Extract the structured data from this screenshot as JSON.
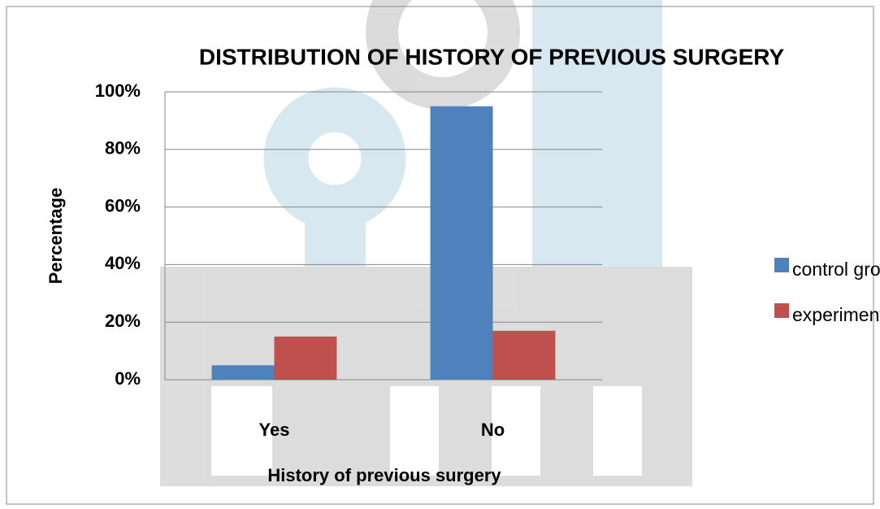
{
  "chart_data": {
    "type": "bar",
    "title": "DISTRIBUTION OF HISTORY OF PREVIOUS SURGERY",
    "x_label": "History of previous surgery",
    "y_label": "Percentage",
    "categories": [
      "Yes",
      "No"
    ],
    "series": [
      {
        "name": "control group",
        "color": "#4f81bd",
        "values": [
          5,
          95
        ]
      },
      {
        "name": "experimental group",
        "color": "#c0504d",
        "values": [
          15,
          17
        ]
      }
    ],
    "ylim": [
      0,
      100
    ],
    "yticks": [
      {
        "value": 0,
        "label": "0%"
      },
      {
        "value": 20,
        "label": "20%"
      },
      {
        "value": 40,
        "label": "40%"
      },
      {
        "value": 60,
        "label": "60%"
      },
      {
        "value": 80,
        "label": "80%"
      },
      {
        "value": 100,
        "label": "100%"
      }
    ],
    "grid": true,
    "legend": "right"
  }
}
